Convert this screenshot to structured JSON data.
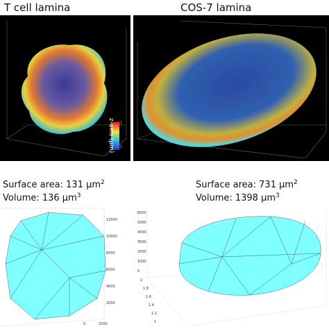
{
  "panels": [
    {
      "title": "T cell lamina",
      "colorbar": {
        "label": "z-axis (μm)",
        "max": "6",
        "min": "0"
      }
    },
    {
      "title": "COS-7 lamina"
    }
  ],
  "meshes": [
    {
      "surface_area": {
        "text": "Surface area: 131 μm",
        "sup": "2"
      },
      "volume": {
        "text": "Volume: 136 μm",
        "sup": "3"
      },
      "right_ticks": [
        "12000",
        "10000",
        "8000",
        "6000",
        "4000",
        "2000"
      ],
      "bottom_ticks": [
        "0",
        "2000"
      ]
    },
    {
      "surface_area": {
        "text": "Surface area: 731 μm",
        "sup": "2"
      },
      "volume": {
        "text": "Volume: 1398 μm",
        "sup": "3"
      },
      "left_ticks": [
        "6000",
        "5000",
        "4000",
        "3000",
        "2000",
        "1000",
        "0"
      ],
      "right_ticks": [
        "2",
        "1.8",
        "1.6",
        "1.4",
        "1.2",
        "1"
      ]
    }
  ]
}
